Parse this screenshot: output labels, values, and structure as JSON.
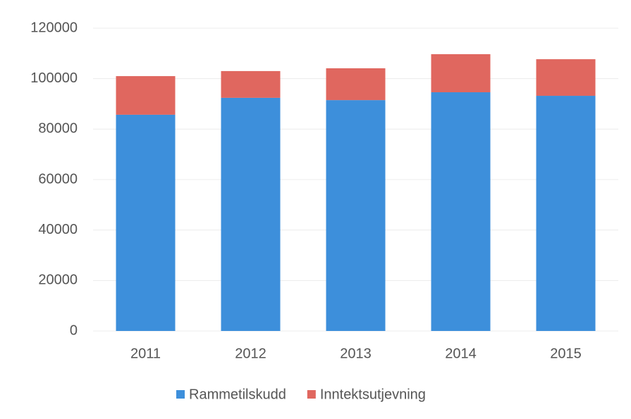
{
  "chart_data": {
    "type": "stacked_bar",
    "categories": [
      "2011",
      "2012",
      "2013",
      "2014",
      "2015"
    ],
    "series": [
      {
        "name": "Rammetilskudd",
        "color": "#3d8fdb",
        "values": [
          85700,
          92400,
          91500,
          94600,
          93200
        ]
      },
      {
        "name": "Inntektsutjevning",
        "color": "#e0675f",
        "values": [
          15300,
          10600,
          12600,
          15100,
          14500
        ]
      }
    ],
    "ylim": [
      0,
      120000
    ],
    "yticks": [
      0,
      20000,
      40000,
      60000,
      80000,
      100000,
      120000
    ],
    "grid": true,
    "legend": "bottom"
  }
}
